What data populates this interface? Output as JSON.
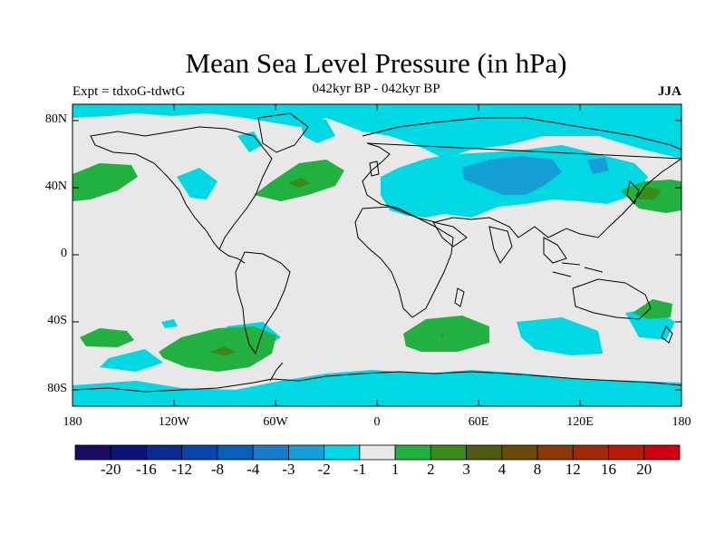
{
  "title": "Mean Sea Level Pressure (in hPa)",
  "experiment_label": "Expt = tdxoG-tdwtG",
  "period_label": "042kyr BP - 042kyr BP",
  "season_label": "JJA",
  "y_ticks": [
    "80N",
    "40N",
    "0",
    "40S",
    "80S"
  ],
  "x_ticks": [
    "180",
    "120W",
    "60W",
    "0",
    "60E",
    "120E",
    "180"
  ],
  "colorbar": {
    "colors": [
      "#1a0a60",
      "#0c1478",
      "#0a2a90",
      "#0a44a8",
      "#0a60b8",
      "#1a7cc8",
      "#14a0d6",
      "#00d8e4",
      "#e8e8e8",
      "#22b040",
      "#3a8a1a",
      "#505a10",
      "#6a4a0a",
      "#8a3a0a",
      "#a02a08",
      "#b81a08",
      "#d00010"
    ],
    "labels": [
      "-20",
      "-16",
      "-12",
      "-8",
      "-4",
      "-3",
      "-2",
      "-1",
      "1",
      "2",
      "3",
      "4",
      "8",
      "12",
      "16",
      "20"
    ]
  },
  "map_colors": {
    "background": "#e8e8e8",
    "neg1": "#00d8e4",
    "neg2": "#14a0d6",
    "pos1": "#22b040",
    "pos2": "#3a8a1a",
    "pos3": "#505a10",
    "coast": "#000000"
  }
}
